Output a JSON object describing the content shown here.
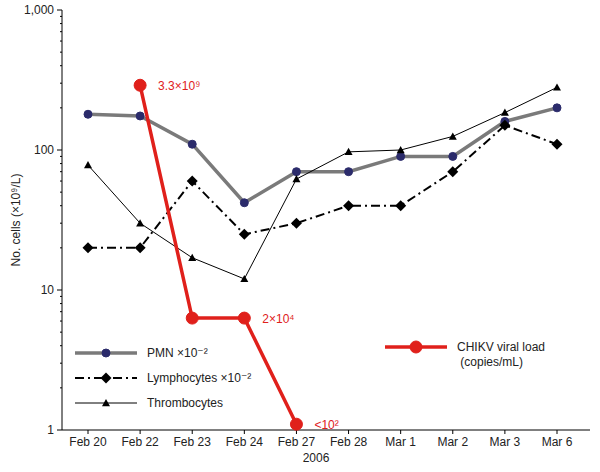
{
  "chart_data": {
    "type": "line",
    "x_label": "2006",
    "y_label": "No. cells (×10⁹/L)",
    "categories": [
      "Feb 20",
      "Feb 22",
      "Feb 23",
      "Feb 24",
      "Feb 27",
      "Feb 28",
      "Mar 1",
      "Mar 2",
      "Mar 3",
      "Mar 6"
    ],
    "log": "y",
    "ylim": [
      1,
      1000
    ],
    "yticks": [
      1,
      10,
      100,
      {
        "value": 1000,
        "label": "1,000"
      }
    ],
    "grid": false,
    "legend": "lower left",
    "series": [
      {
        "name": "PMN ×10⁻²",
        "color": "#7a7a7a",
        "marker": "circle",
        "line_style": "solid",
        "values": [
          180,
          175,
          110,
          42,
          70,
          70,
          90,
          90,
          160,
          200
        ]
      },
      {
        "name": "Lymphocytes ×10⁻²",
        "color": "#000000",
        "marker": "diamond",
        "line_style": "dashdot",
        "values": [
          20,
          20,
          60,
          25,
          30,
          40,
          40,
          70,
          150,
          110
        ]
      },
      {
        "name": "Thrombocytes",
        "color": "#000000",
        "marker": "triangle",
        "line_style": "solid",
        "values": [
          78,
          30,
          17,
          12,
          62,
          97,
          100,
          125,
          185,
          280
        ]
      },
      {
        "name": "CHIKV viral load (copies/mL)",
        "color": "#e0201b",
        "marker": "circle",
        "line_style": "solid",
        "values": [
          null,
          290,
          6.3,
          6.3,
          1.1,
          null,
          null,
          null,
          null,
          null
        ]
      }
    ],
    "annotations": [
      {
        "text": "3.3×10⁹",
        "x": "Feb 22"
      },
      {
        "text": "2×10⁴",
        "x": "Feb 24"
      },
      {
        "text": "<10²",
        "x": "Feb 27"
      }
    ]
  }
}
